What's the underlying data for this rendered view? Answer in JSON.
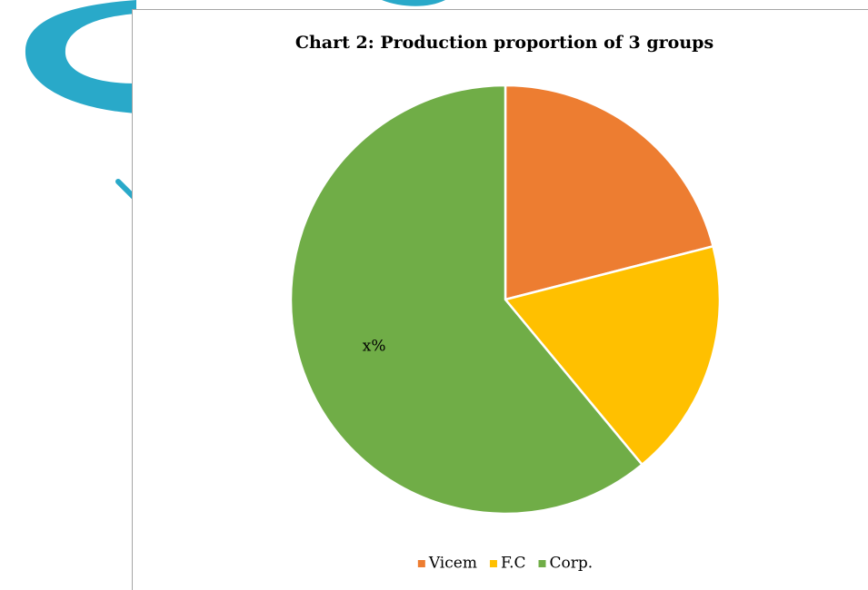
{
  "chart_data": {
    "type": "pie",
    "title": "Chart 2: Production proportion of 3 groups",
    "categories": [
      "Vicem",
      "F.C",
      "Corp."
    ],
    "values": [
      21,
      18,
      61
    ],
    "value_labels": [
      null,
      null,
      "x%"
    ],
    "colors": [
      "#ed7d31",
      "#ffc000",
      "#70ad47"
    ],
    "legend": "bottom"
  }
}
